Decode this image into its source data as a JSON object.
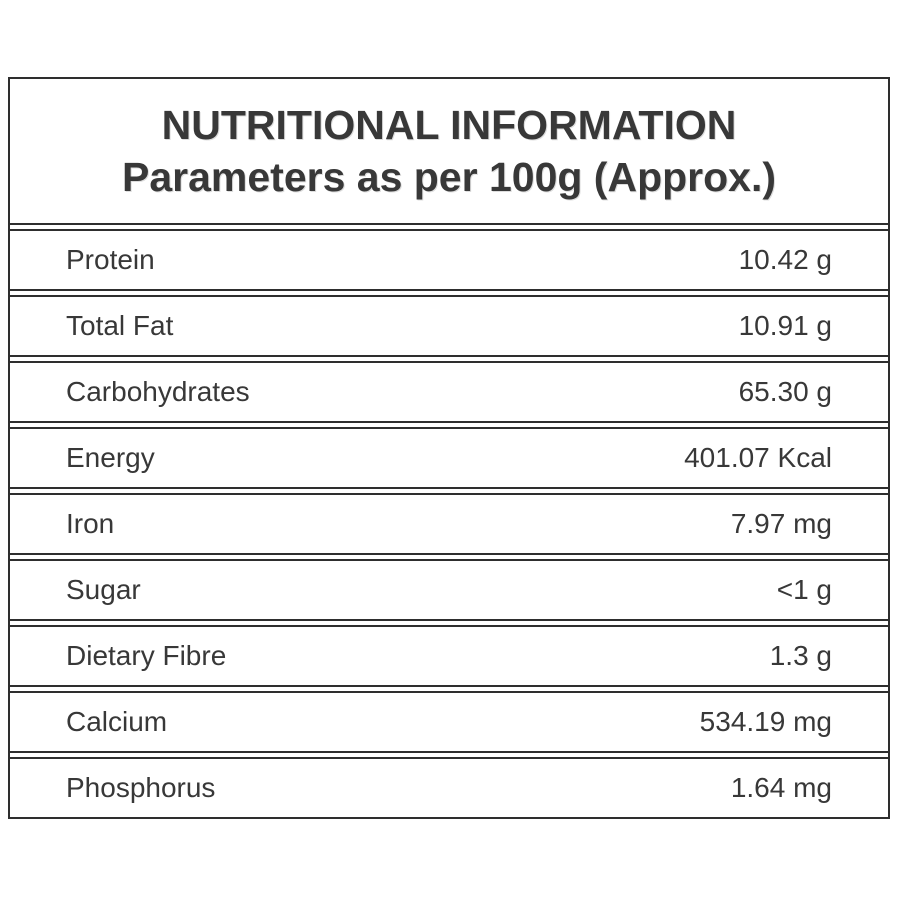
{
  "table": {
    "title_line1": "NUTRITIONAL INFORMATION",
    "title_line2": "Parameters as per 100g (Approx.)",
    "rows": [
      {
        "label": "Protein",
        "value": "10.42 g"
      },
      {
        "label": "Total Fat",
        "value": "10.91 g"
      },
      {
        "label": "Carbohydrates",
        "value": "65.30 g"
      },
      {
        "label": "Energy",
        "value": "401.07 Kcal"
      },
      {
        "label": "Iron",
        "value": "7.97 mg"
      },
      {
        "label": "Sugar",
        "value": "<1 g"
      },
      {
        "label": "Dietary Fibre",
        "value": "1.3 g"
      },
      {
        "label": "Calcium",
        "value": "534.19 mg"
      },
      {
        "label": "Phosphorus",
        "value": "1.64 mg"
      }
    ],
    "colors": {
      "border": "#2e2e2e",
      "text": "#383838",
      "background": "#ffffff"
    }
  }
}
